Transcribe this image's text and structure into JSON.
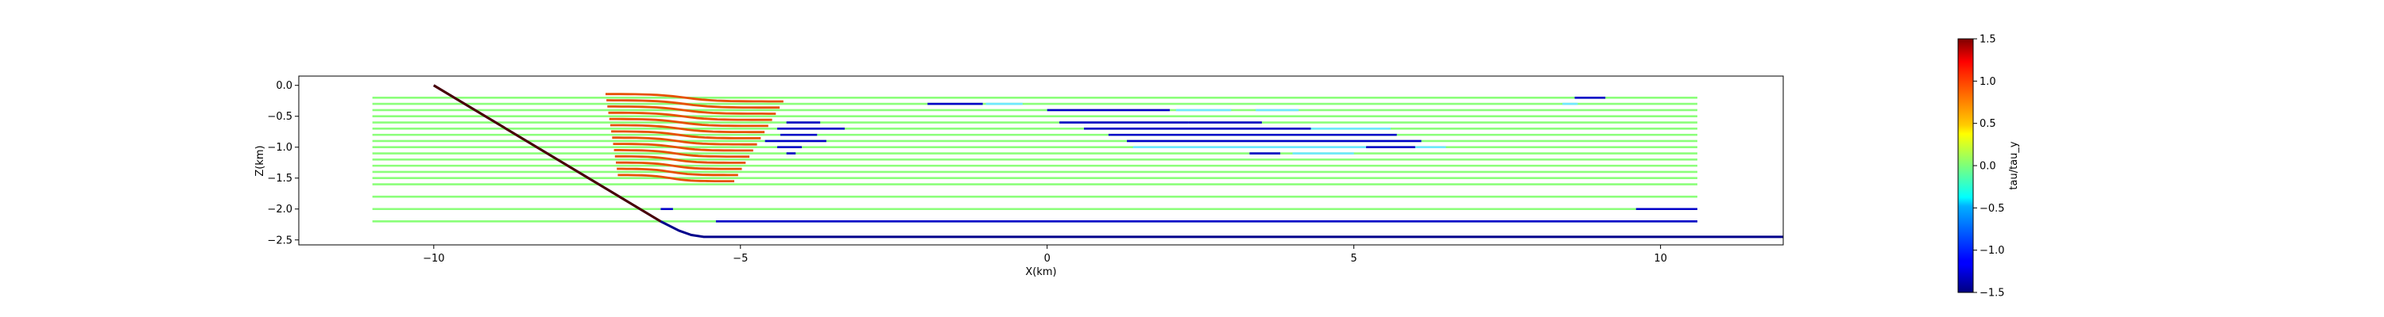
{
  "chart_data": {
    "type": "line",
    "xlabel": "X(km)",
    "ylabel": "Z(km)",
    "xlim": [
      -12.2,
      12.0
    ],
    "ylim": [
      -2.58,
      0.15
    ],
    "xticks": [
      -10,
      -5,
      0,
      5,
      10
    ],
    "xtick_labels": [
      "−10",
      "−5",
      "0",
      "5",
      "10"
    ],
    "yticks": [
      0.0,
      -0.5,
      -1.0,
      -1.5,
      -2.0,
      -2.5
    ],
    "ytick_labels": [
      "0.0",
      "−0.5",
      "−1.0",
      "−1.5",
      "−2.0",
      "−2.5"
    ],
    "grid": false,
    "colorbar": {
      "label": "tau/tau_y",
      "min": -1.5,
      "max": 1.5,
      "ticks": [
        1.5,
        1.0,
        0.5,
        0.0,
        -0.5,
        -1.0,
        -1.5
      ],
      "tick_labels": [
        "1.5",
        "1.0",
        "0.5",
        "0.0",
        "−0.5",
        "−1.0",
        "−1.5"
      ],
      "colormap": "jet"
    },
    "topography": {
      "x": [
        -10.0,
        -6.3,
        -6.0,
        -5.8,
        -5.6,
        -5.0,
        0.0,
        12.0
      ],
      "z": [
        0.0,
        -2.2,
        -2.35,
        -2.42,
        -2.45,
        -2.45,
        -2.45,
        -2.45
      ],
      "color": "#00008b"
    },
    "dark_line": {
      "x": [
        -10.0,
        -6.3
      ],
      "z": [
        0.0,
        -2.2
      ],
      "color": "#4a0000"
    },
    "layers": {
      "z": [
        -0.2,
        -0.3,
        -0.4,
        -0.5,
        -0.6,
        -0.7,
        -0.8,
        -0.9,
        -1.0,
        -1.1,
        -1.2,
        -1.3,
        -1.4,
        -1.5,
        -1.6,
        -1.8,
        -2.0,
        -2.2
      ],
      "x_start": -11.0,
      "x_end": 10.6,
      "background_value": 0.2,
      "colors": {
        "background": "#8bff7a",
        "positive": "#e65100",
        "negative": "#0000c8",
        "weak_negative": "#6ee8ff"
      }
    },
    "red_curves_value": 1.3,
    "blue_segments": [
      {
        "z": -0.3,
        "x0": -1.95,
        "x1": -1.05,
        "value": -1.3
      },
      {
        "z": -0.3,
        "x0": -1.0,
        "x1": -0.4,
        "value": -0.55
      },
      {
        "z": -0.3,
        "x0": 8.4,
        "x1": 8.65,
        "value": -0.55
      },
      {
        "z": -0.2,
        "x0": 8.6,
        "x1": 9.1,
        "value": -1.3
      },
      {
        "z": -0.4,
        "x0": 0.0,
        "x1": 2.0,
        "value": -1.3
      },
      {
        "z": -0.4,
        "x0": 2.1,
        "x1": 3.0,
        "value": -0.55
      },
      {
        "z": -0.4,
        "x0": 3.4,
        "x1": 4.1,
        "value": -0.55
      },
      {
        "z": -0.6,
        "x0": -4.25,
        "x1": -3.7,
        "value": -1.3
      },
      {
        "z": -0.6,
        "x0": 0.2,
        "x1": 2.3,
        "value": -1.3
      },
      {
        "z": -0.6,
        "x0": 2.3,
        "x1": 3.5,
        "value": -1.3
      },
      {
        "z": -0.7,
        "x0": -4.4,
        "x1": -3.3,
        "value": -1.3
      },
      {
        "z": -0.7,
        "x0": 0.6,
        "x1": 4.3,
        "value": -1.3
      },
      {
        "z": -0.7,
        "x0": 4.3,
        "x1": 5.6,
        "value": -0.55
      },
      {
        "z": -0.8,
        "x0": -4.35,
        "x1": -3.75,
        "value": -1.3
      },
      {
        "z": -0.8,
        "x0": 1.0,
        "x1": 5.7,
        "value": -1.3
      },
      {
        "z": -0.9,
        "x0": -4.6,
        "x1": -3.6,
        "value": -1.3
      },
      {
        "z": -0.9,
        "x0": 1.3,
        "x1": 6.1,
        "value": -1.3
      },
      {
        "z": -1.0,
        "x0": -4.4,
        "x1": -4.0,
        "value": -1.3
      },
      {
        "z": -1.0,
        "x0": 1.4,
        "x1": 5.2,
        "value": -0.55
      },
      {
        "z": -1.0,
        "x0": 5.2,
        "x1": 6.0,
        "value": -1.3
      },
      {
        "z": -1.0,
        "x0": 6.0,
        "x1": 6.5,
        "value": -0.55
      },
      {
        "z": -1.1,
        "x0": -4.25,
        "x1": -4.1,
        "value": -1.3
      },
      {
        "z": -1.1,
        "x0": 3.3,
        "x1": 3.8,
        "value": -1.3
      },
      {
        "z": -1.1,
        "x0": 4.0,
        "x1": 5.0,
        "value": -0.55
      },
      {
        "z": -2.0,
        "x0": 9.6,
        "x1": 10.6,
        "value": -1.3
      },
      {
        "z": -2.2,
        "x0": -5.4,
        "x1": 10.6,
        "value": -1.3
      },
      {
        "z": -2.0,
        "x0": -6.3,
        "x1": -6.1,
        "value": -1.3
      }
    ]
  }
}
